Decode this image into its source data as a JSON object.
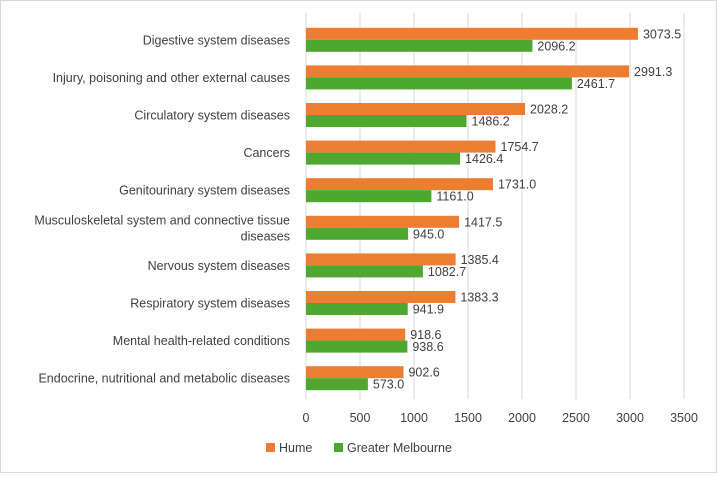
{
  "chart_data": {
    "type": "bar",
    "orientation": "horizontal",
    "title": "",
    "xlabel": "",
    "ylabel": "",
    "xlim": [
      0,
      3500
    ],
    "x_ticks": [
      0,
      500,
      1000,
      1500,
      2000,
      2500,
      3000,
      3500
    ],
    "grid": "vertical",
    "legend_position": "bottom",
    "categories": [
      [
        "Digestive system diseases"
      ],
      [
        "Injury, poisoning and other external causes"
      ],
      [
        "Circulatory system diseases"
      ],
      [
        "Cancers"
      ],
      [
        "Genitourinary system diseases"
      ],
      [
        "Musculoskeletal system and connective tissue",
        "diseases"
      ],
      [
        "Nervous system diseases"
      ],
      [
        "Respiratory system diseases"
      ],
      [
        "Mental health-related conditions"
      ],
      [
        "Endocrine, nutritional and metabolic diseases"
      ]
    ],
    "series": [
      {
        "name": "Hume",
        "color": "#ED7D31",
        "values": [
          3073.5,
          2991.3,
          2028.2,
          1754.7,
          1731.0,
          1417.5,
          1385.4,
          1383.3,
          918.6,
          902.6
        ],
        "labels": [
          "3073.5",
          "2991.3",
          "2028.2",
          "1754.7",
          "1731.0",
          "1417.5",
          "1385.4",
          "1383.3",
          "918.6",
          "902.6"
        ]
      },
      {
        "name": "Greater Melbourne",
        "color": "#4EA72E",
        "values": [
          2096.2,
          2461.7,
          1486.2,
          1426.4,
          1161.0,
          945.0,
          1082.7,
          941.9,
          938.6,
          573.0
        ],
        "labels": [
          "2096.2",
          "2461.7",
          "1486.2",
          "1426.4",
          "1161.0",
          "945.0",
          "1082.7",
          "941.9",
          "938.6",
          "573.0"
        ]
      }
    ]
  }
}
